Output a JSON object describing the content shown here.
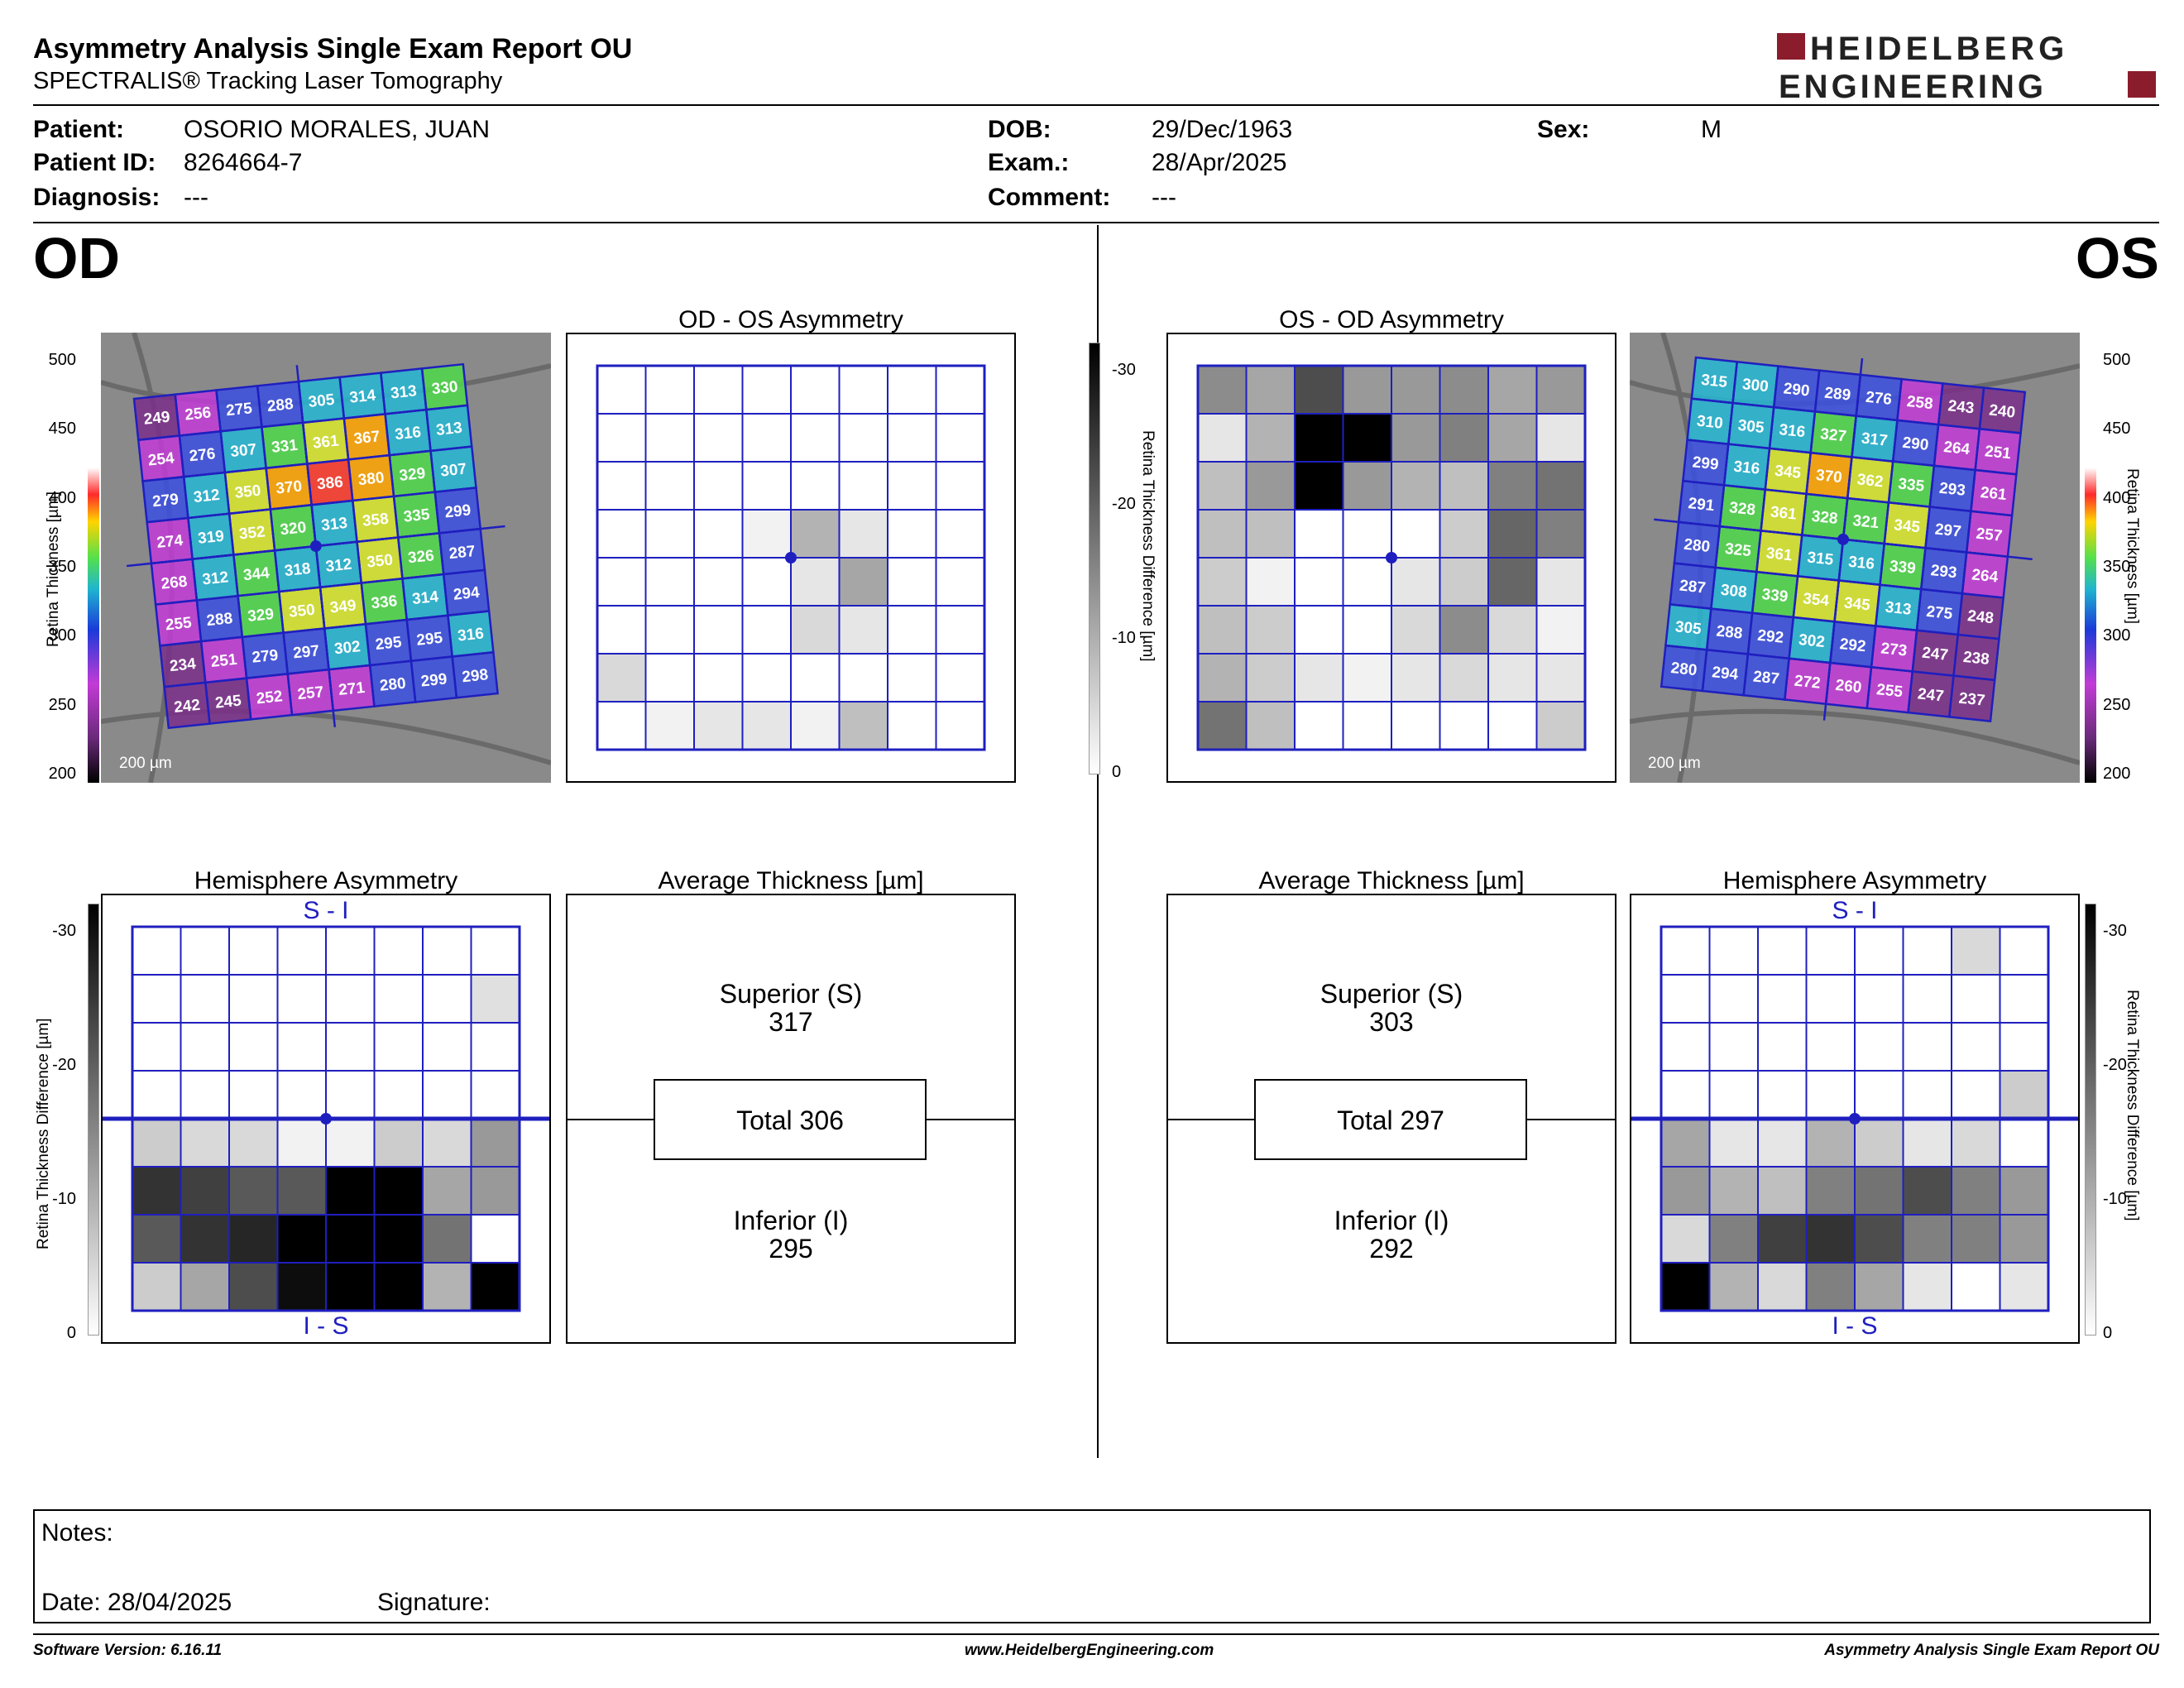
{
  "header": {
    "title": "Asymmetry Analysis Single Exam Report OU",
    "subtitle": "SPECTRALIS® Tracking Laser Tomography",
    "logo_line1": "HEIDELBERG",
    "logo_line2": "ENGINEERING",
    "brand_color": "#8b1c2c"
  },
  "patient": {
    "patient_label": "Patient:",
    "patient_value": "OSORIO MORALES, JUAN",
    "id_label": "Patient ID:",
    "id_value": "8264664-7",
    "diag_label": "Diagnosis:",
    "diag_value": "---",
    "dob_label": "DOB:",
    "dob_value": "29/Dec/1963",
    "exam_label": "Exam.:",
    "exam_value": "28/Apr/2025",
    "comment_label": "Comment:",
    "comment_value": "---",
    "sex_label": "Sex:",
    "sex_value": "M"
  },
  "eyes": {
    "od": "OD",
    "os": "OS"
  },
  "titles": {
    "od_asym": "OD - OS Asymmetry",
    "os_asym": "OS - OD Asymmetry",
    "hemi": "Hemisphere Asymmetry",
    "avg": "Average Thickness [µm]"
  },
  "scale": {
    "thick_label": "Retina Thickness [µm]",
    "thick_ticks": [
      "500",
      "450",
      "400",
      "350",
      "300",
      "250",
      "200"
    ],
    "diff_label": "Retina Thickness Difference [µm]",
    "diff_ticks": [
      "-30",
      "-20",
      "-10",
      "0"
    ],
    "bar_label": "200 µm"
  },
  "hemi": {
    "top": "S - I",
    "bottom": "I - S",
    "color": "#1f1fbf"
  },
  "od_grid": [
    [
      249,
      256,
      275,
      288,
      305,
      314,
      313,
      330
    ],
    [
      254,
      276,
      307,
      331,
      361,
      367,
      316,
      313
    ],
    [
      279,
      312,
      350,
      370,
      386,
      380,
      329,
      307
    ],
    [
      274,
      319,
      352,
      320,
      313,
      358,
      335,
      299
    ],
    [
      268,
      312,
      344,
      318,
      312,
      350,
      326,
      287
    ],
    [
      255,
      288,
      329,
      350,
      349,
      336,
      314,
      294
    ],
    [
      234,
      251,
      279,
      297,
      302,
      295,
      295,
      316
    ],
    [
      242,
      245,
      252,
      257,
      271,
      280,
      299,
      298
    ]
  ],
  "os_grid": [
    [
      315,
      300,
      290,
      289,
      276,
      258,
      243,
      240
    ],
    [
      310,
      305,
      316,
      327,
      317,
      290,
      264,
      251
    ],
    [
      299,
      316,
      345,
      370,
      362,
      335,
      293,
      261
    ],
    [
      291,
      328,
      361,
      328,
      321,
      345,
      297,
      257
    ],
    [
      280,
      325,
      361,
      315,
      316,
      339,
      293,
      264
    ],
    [
      287,
      308,
      339,
      354,
      345,
      313,
      275,
      248
    ],
    [
      305,
      288,
      292,
      302,
      292,
      273,
      247,
      238
    ],
    [
      280,
      294,
      287,
      272,
      260,
      255,
      247,
      237
    ]
  ],
  "od_asym_levels": [
    [
      0,
      0,
      0,
      0,
      0,
      0,
      0,
      0
    ],
    [
      0,
      0,
      0,
      0,
      0,
      0,
      0,
      0
    ],
    [
      0,
      0,
      0,
      0,
      0,
      0,
      0,
      0
    ],
    [
      0,
      0,
      0,
      0.05,
      0.3,
      0.1,
      0,
      0
    ],
    [
      0,
      0,
      0,
      0,
      0.1,
      0.35,
      0,
      0
    ],
    [
      0,
      0,
      0,
      0,
      0.15,
      0.1,
      0,
      0
    ],
    [
      0.15,
      0,
      0,
      0,
      0,
      0,
      0,
      0
    ],
    [
      0,
      0.05,
      0.1,
      0.1,
      0.05,
      0.25,
      0,
      0
    ]
  ],
  "os_asym_levels": [
    [
      0.45,
      0.35,
      0.7,
      0.4,
      0.4,
      0.45,
      0.35,
      0.4
    ],
    [
      0.1,
      0.3,
      1,
      1,
      0.4,
      0.5,
      0.35,
      0.1
    ],
    [
      0.25,
      0.4,
      1,
      0.4,
      0.3,
      0.25,
      0.5,
      0.55
    ],
    [
      0.25,
      0.25,
      0,
      0,
      0,
      0.2,
      0.6,
      0.5
    ],
    [
      0.2,
      0.05,
      0,
      0,
      0.1,
      0.2,
      0.6,
      0.1
    ],
    [
      0.25,
      0.2,
      0,
      0,
      0.15,
      0.45,
      0.15,
      0.05
    ],
    [
      0.3,
      0.2,
      0.1,
      0.05,
      0.1,
      0.15,
      0.1,
      0.1
    ],
    [
      0.55,
      0.25,
      0,
      0,
      0,
      0,
      0,
      0.2
    ]
  ],
  "od_hemi_levels": [
    [
      0,
      0,
      0,
      0,
      0,
      0,
      0,
      0
    ],
    [
      0,
      0,
      0,
      0,
      0,
      0,
      0,
      0.12
    ],
    [
      0,
      0,
      0,
      0,
      0,
      0,
      0,
      0
    ],
    [
      0,
      0,
      0,
      0,
      0,
      0,
      0,
      0
    ],
    [
      0.2,
      0.15,
      0.15,
      0.05,
      0.05,
      0.2,
      0.15,
      0.4
    ],
    [
      0.8,
      0.75,
      0.65,
      0.65,
      1,
      1,
      0.35,
      0.4
    ],
    [
      0.65,
      0.8,
      0.85,
      1,
      1,
      1,
      0.55,
      0
    ],
    [
      0.2,
      0.35,
      0.7,
      0.95,
      1,
      1,
      0.3,
      1
    ]
  ],
  "os_hemi_levels": [
    [
      0,
      0,
      0,
      0,
      0,
      0,
      0.15,
      0
    ],
    [
      0,
      0,
      0,
      0,
      0,
      0,
      0,
      0
    ],
    [
      0,
      0,
      0,
      0,
      0,
      0,
      0,
      0
    ],
    [
      0,
      0,
      0,
      0,
      0,
      0,
      0,
      0.2
    ],
    [
      0.35,
      0.1,
      0.1,
      0.3,
      0.2,
      0.1,
      0.15,
      0
    ],
    [
      0.4,
      0.3,
      0.25,
      0.5,
      0.55,
      0.7,
      0.5,
      0.4
    ],
    [
      0.15,
      0.5,
      0.75,
      0.8,
      0.7,
      0.5,
      0.5,
      0.4
    ],
    [
      1,
      0.3,
      0.15,
      0.5,
      0.35,
      0.1,
      0,
      0.1
    ]
  ],
  "od_avg": {
    "sup_label": "Superior (S)",
    "sup_value": "317",
    "total": "Total 306",
    "inf_label": "Inferior (I)",
    "inf_value": "295"
  },
  "os_avg": {
    "sup_label": "Superior (S)",
    "sup_value": "303",
    "total": "Total 297",
    "inf_label": "Inferior (I)",
    "inf_value": "292"
  },
  "notes": {
    "label": "Notes:",
    "date": "Date: 28/04/2025",
    "signature": "Signature:"
  },
  "footer": {
    "version": "Software Version: 6.16.11",
    "url": "www.HeidelbergEngineering.com",
    "report": "Asymmetry Analysis Single Exam Report OU"
  },
  "grid_color": "#1f1fbf"
}
